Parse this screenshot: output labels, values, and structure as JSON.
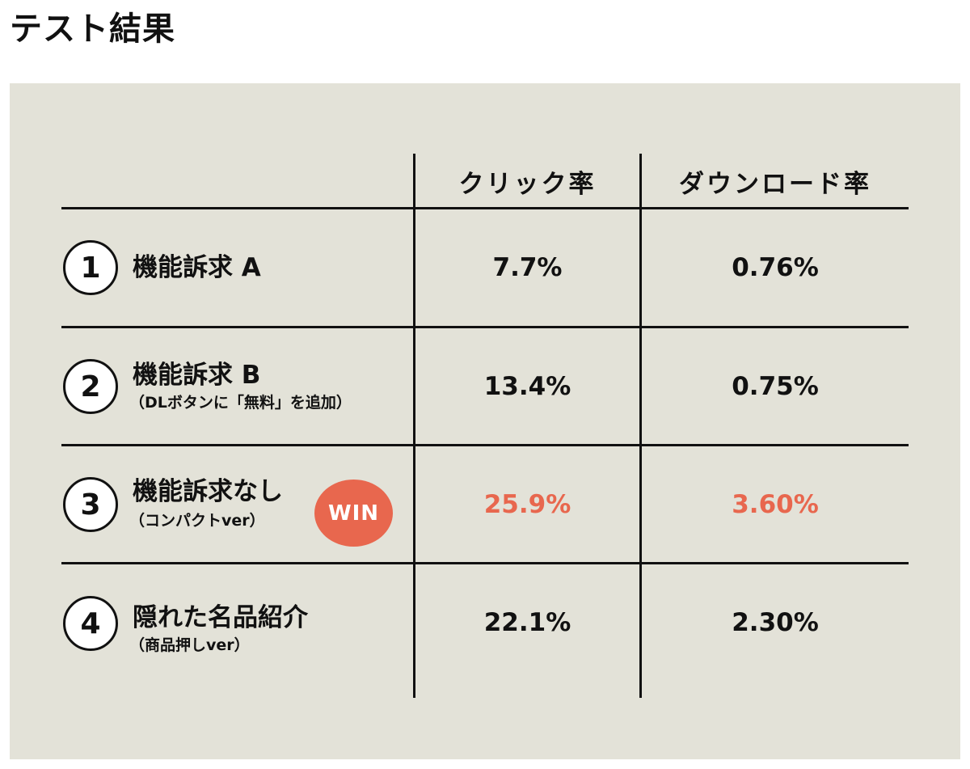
{
  "title": "テスト結果",
  "accent_color": "#e8674e",
  "chart_data": {
    "type": "table",
    "columns": [
      "",
      "クリック率",
      "ダウンロード率"
    ],
    "rows": [
      {
        "number": "1",
        "label": "機能訴求 A",
        "sub": "",
        "click_rate": "7.7%",
        "download_rate": "0.76%",
        "winner": false
      },
      {
        "number": "2",
        "label": "機能訴求 B",
        "sub": "（DLボタンに「無料」を追加）",
        "click_rate": "13.4%",
        "download_rate": "0.75%",
        "winner": false
      },
      {
        "number": "3",
        "label": "機能訴求なし",
        "sub": "（コンパクトver）",
        "click_rate": "25.9%",
        "download_rate": "3.60%",
        "winner": true
      },
      {
        "number": "4",
        "label": "隠れた名品紹介",
        "sub": "（商品押しver）",
        "click_rate": "22.1%",
        "download_rate": "2.30%",
        "winner": false
      }
    ],
    "win_label": "WIN"
  }
}
